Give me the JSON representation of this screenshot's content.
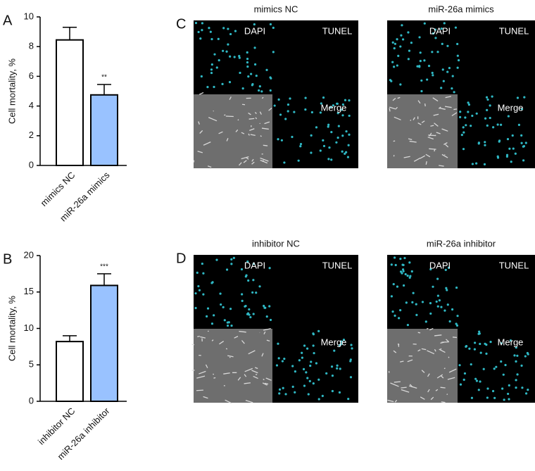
{
  "chart_data": [
    {
      "type": "bar",
      "panel_label": "A",
      "ylabel": "Cell mortality, %",
      "categories": [
        "mimics NC",
        "miR-26a mimics"
      ],
      "values": [
        8.45,
        4.75
      ],
      "errors": [
        0.85,
        0.7
      ],
      "colors": [
        "#ffffff",
        "#99c2ff"
      ],
      "annotations": [
        null,
        "**"
      ],
      "ylim": [
        0,
        10
      ],
      "yticks": [
        0,
        2,
        4,
        6,
        8,
        10
      ]
    },
    {
      "type": "bar",
      "panel_label": "B",
      "ylabel": "Cell mortality, %",
      "categories": [
        "inhibitor NC",
        "miR-26a inhibitor"
      ],
      "values": [
        8.2,
        15.9
      ],
      "errors": [
        0.8,
        1.6
      ],
      "colors": [
        "#ffffff",
        "#99c2ff"
      ],
      "annotations": [
        null,
        "***"
      ],
      "ylim": [
        0,
        20
      ],
      "yticks": [
        0,
        5,
        10,
        15,
        20
      ]
    }
  ],
  "panels": [
    {
      "letter": "C",
      "images": [
        {
          "title": "mimics NC",
          "labels": [
            "DAPI",
            "TUNEL",
            "Merge"
          ]
        },
        {
          "title": "miR-26a mimics",
          "labels": [
            "DAPI",
            "TUNEL",
            "Merge"
          ]
        }
      ]
    },
    {
      "letter": "D",
      "images": [
        {
          "title": "inhibitor NC",
          "labels": [
            "DAPI",
            "TUNEL",
            "Merge"
          ]
        },
        {
          "title": "miR-26a inhibitor",
          "labels": [
            "DAPI",
            "TUNEL",
            "Merge"
          ]
        }
      ]
    }
  ]
}
